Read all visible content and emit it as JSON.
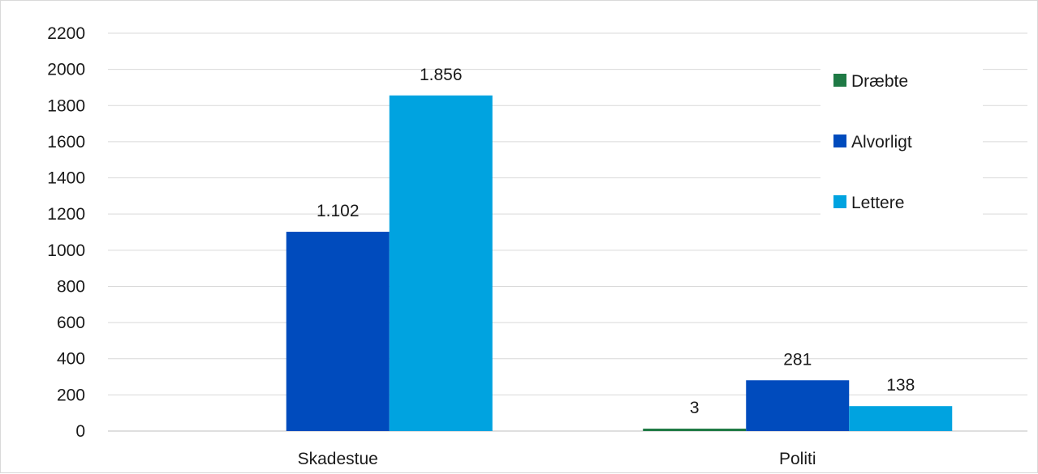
{
  "chart_data": {
    "type": "bar",
    "categories": [
      "Skadestue",
      "Politi"
    ],
    "series": [
      {
        "name": "Dræbte",
        "values": [
          null,
          3
        ],
        "labels": [
          "",
          "3"
        ],
        "color": "#1f7a45"
      },
      {
        "name": "Alvorligt",
        "values": [
          1102,
          281
        ],
        "labels": [
          "1.102",
          "281"
        ],
        "color": "#004bbd"
      },
      {
        "name": "Lettere",
        "values": [
          1856,
          138
        ],
        "labels": [
          "1.856",
          "138"
        ],
        "color": "#00a3e0"
      }
    ],
    "ylim": [
      0,
      2200
    ],
    "yticks": [
      0,
      200,
      400,
      600,
      800,
      1000,
      1200,
      1400,
      1600,
      1800,
      2000,
      2200
    ],
    "grid": true,
    "legend_position": "top-right",
    "title": "",
    "xlabel": "",
    "ylabel": ""
  }
}
